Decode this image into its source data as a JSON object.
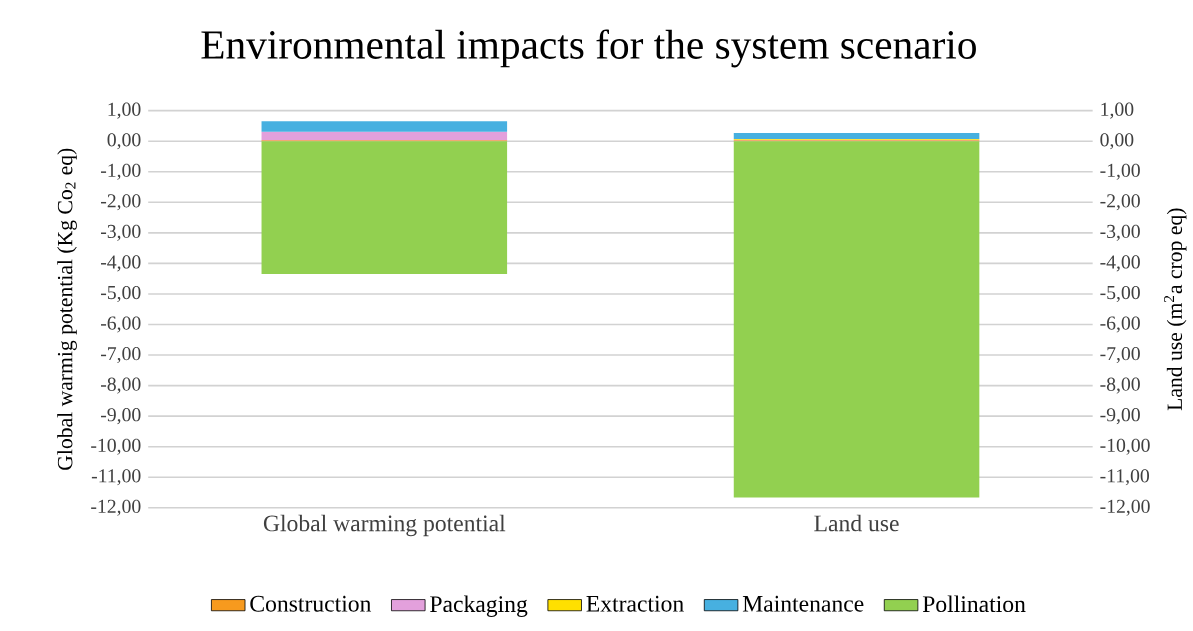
{
  "chart_data": {
    "type": "bar",
    "stacked": true,
    "title": "Environmental impacts for the system scenario",
    "ylabel": "Global warmig potential (Kg Co$_{2}$ eq)",
    "y2label": "Land use (m$^{2}$a crop eq)",
    "categories": [
      "Global warming potential",
      "Land use"
    ],
    "series": [
      {
        "name": "Construction",
        "color": "#f79a1e",
        "values": [
          0.03,
          0.03
        ]
      },
      {
        "name": "Packaging",
        "color": "#e3a0dc",
        "values": [
          0.28,
          0.02
        ]
      },
      {
        "name": "Extraction",
        "color": "#ffe000",
        "values": [
          null,
          0.02
        ]
      },
      {
        "name": "Maintenance",
        "color": "#47b0e0",
        "values": [
          0.34,
          0.2
        ]
      },
      {
        "name": "Pollination",
        "color": "#92d050",
        "values": [
          -4.35,
          -11.66
        ]
      }
    ],
    "ylim": [
      -12,
      1
    ],
    "yticks": [
      {
        "value": 1,
        "label": "1,00"
      },
      {
        "value": 0,
        "label": "0,00"
      },
      {
        "value": -1,
        "label": "-1,00"
      },
      {
        "value": -2,
        "label": "-2,00"
      },
      {
        "value": -3,
        "label": "-3,00"
      },
      {
        "value": -4,
        "label": "-4,00"
      },
      {
        "value": -5,
        "label": "-5,00"
      },
      {
        "value": -6,
        "label": "-6,00"
      },
      {
        "value": -7,
        "label": "-7,00"
      },
      {
        "value": -8,
        "label": "-8,00"
      },
      {
        "value": -9,
        "label": "-9,00"
      },
      {
        "value": -10,
        "label": "-10,00"
      },
      {
        "value": -11,
        "label": "-11,00"
      },
      {
        "value": -12,
        "label": "-12,00"
      }
    ],
    "y2lim": [
      -12,
      1
    ],
    "y2ticks": [
      {
        "value": 1,
        "label": "1,00"
      },
      {
        "value": 0,
        "label": "0,00"
      },
      {
        "value": -1,
        "label": "-1,00"
      },
      {
        "value": -2,
        "label": "-2,00"
      },
      {
        "value": -3,
        "label": "-3,00"
      },
      {
        "value": -4,
        "label": "-4,00"
      },
      {
        "value": -5,
        "label": "-5,00"
      },
      {
        "value": -6,
        "label": "-6,00"
      },
      {
        "value": -7,
        "label": "-7,00"
      },
      {
        "value": -8,
        "label": "-8,00"
      },
      {
        "value": -9,
        "label": "-9,00"
      },
      {
        "value": -10,
        "label": "-10,00"
      },
      {
        "value": -11,
        "label": "-11,00"
      },
      {
        "value": -12,
        "label": "-12,00"
      }
    ],
    "grid": "y",
    "legend": "bottom"
  }
}
